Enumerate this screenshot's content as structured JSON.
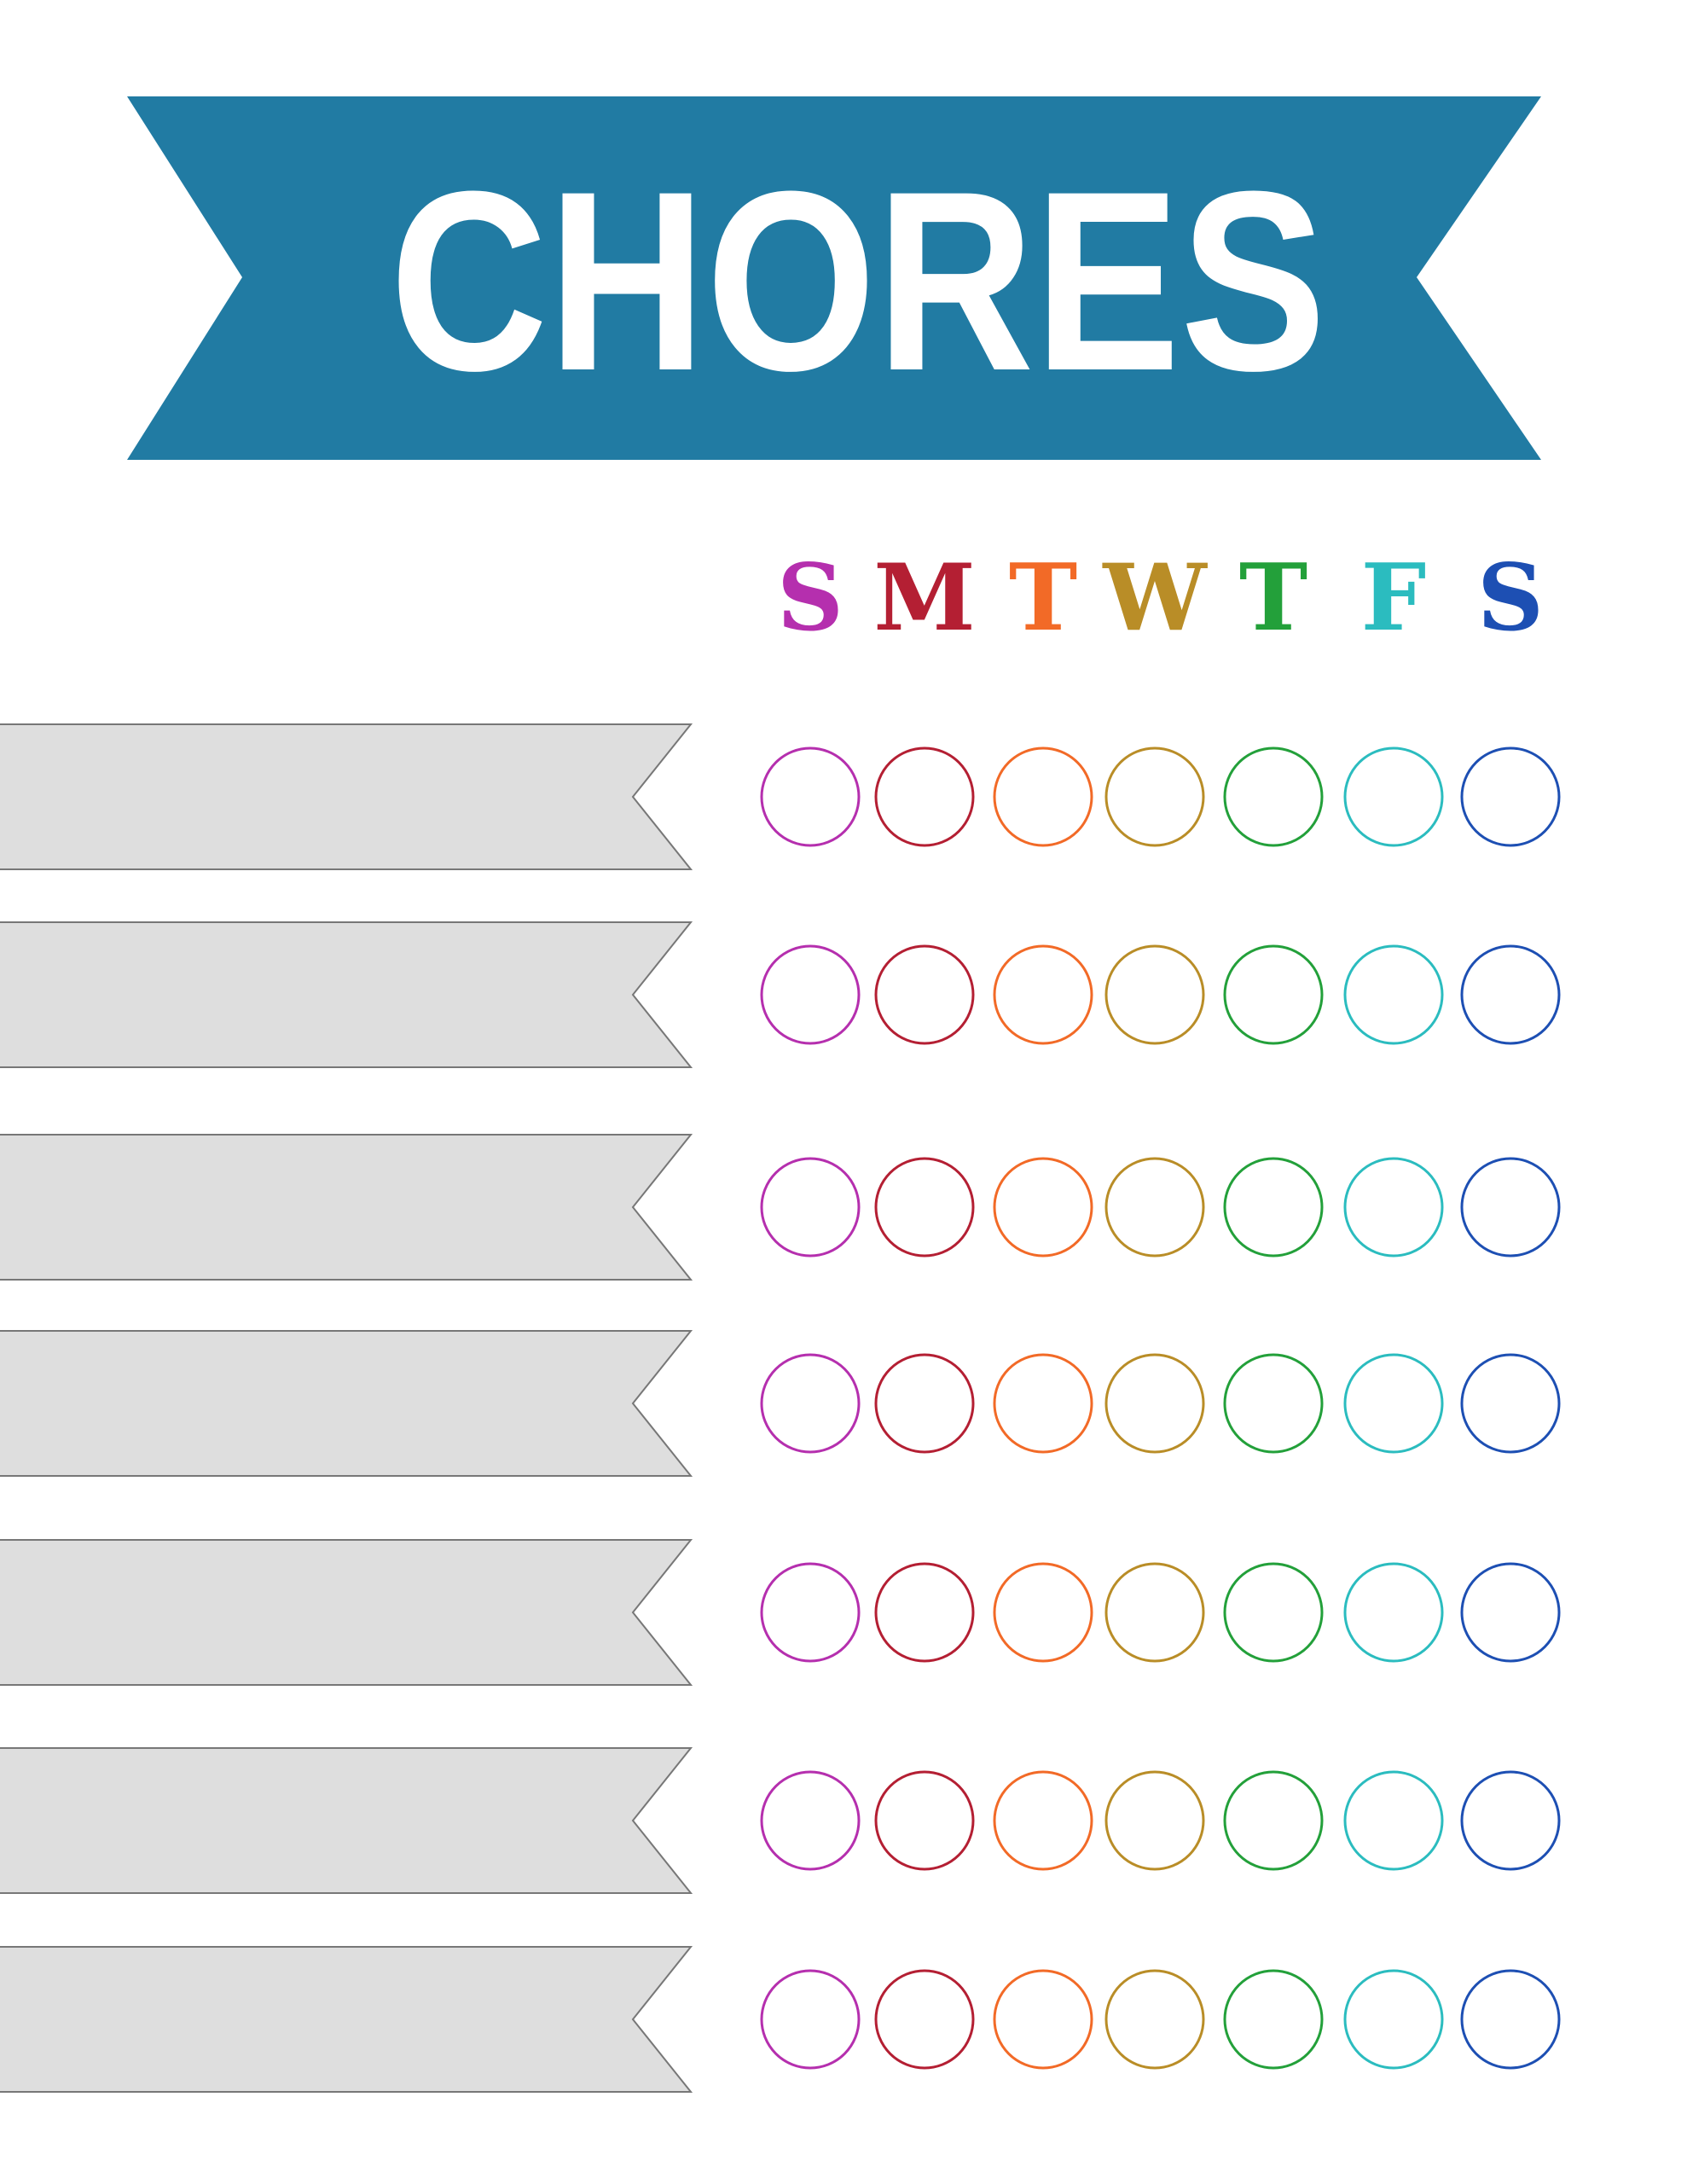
{
  "header": {
    "title": "CHORES",
    "banner_color": "#217ba3",
    "title_color": "#ffffff"
  },
  "days": [
    {
      "label": "S",
      "color": "#b52fae"
    },
    {
      "label": "M",
      "color": "#b41f33"
    },
    {
      "label": "T",
      "color": "#f26a27"
    },
    {
      "label": "W",
      "color": "#b98d27"
    },
    {
      "label": "T",
      "color": "#23a03a"
    },
    {
      "label": "F",
      "color": "#2bbcbf"
    },
    {
      "label": "S",
      "color": "#1d4fb3"
    }
  ],
  "chores": [
    {
      "label": ""
    },
    {
      "label": ""
    },
    {
      "label": ""
    },
    {
      "label": ""
    },
    {
      "label": ""
    },
    {
      "label": ""
    },
    {
      "label": ""
    }
  ],
  "ribbon_fill": "#dedede",
  "ribbon_stroke": "#777777"
}
